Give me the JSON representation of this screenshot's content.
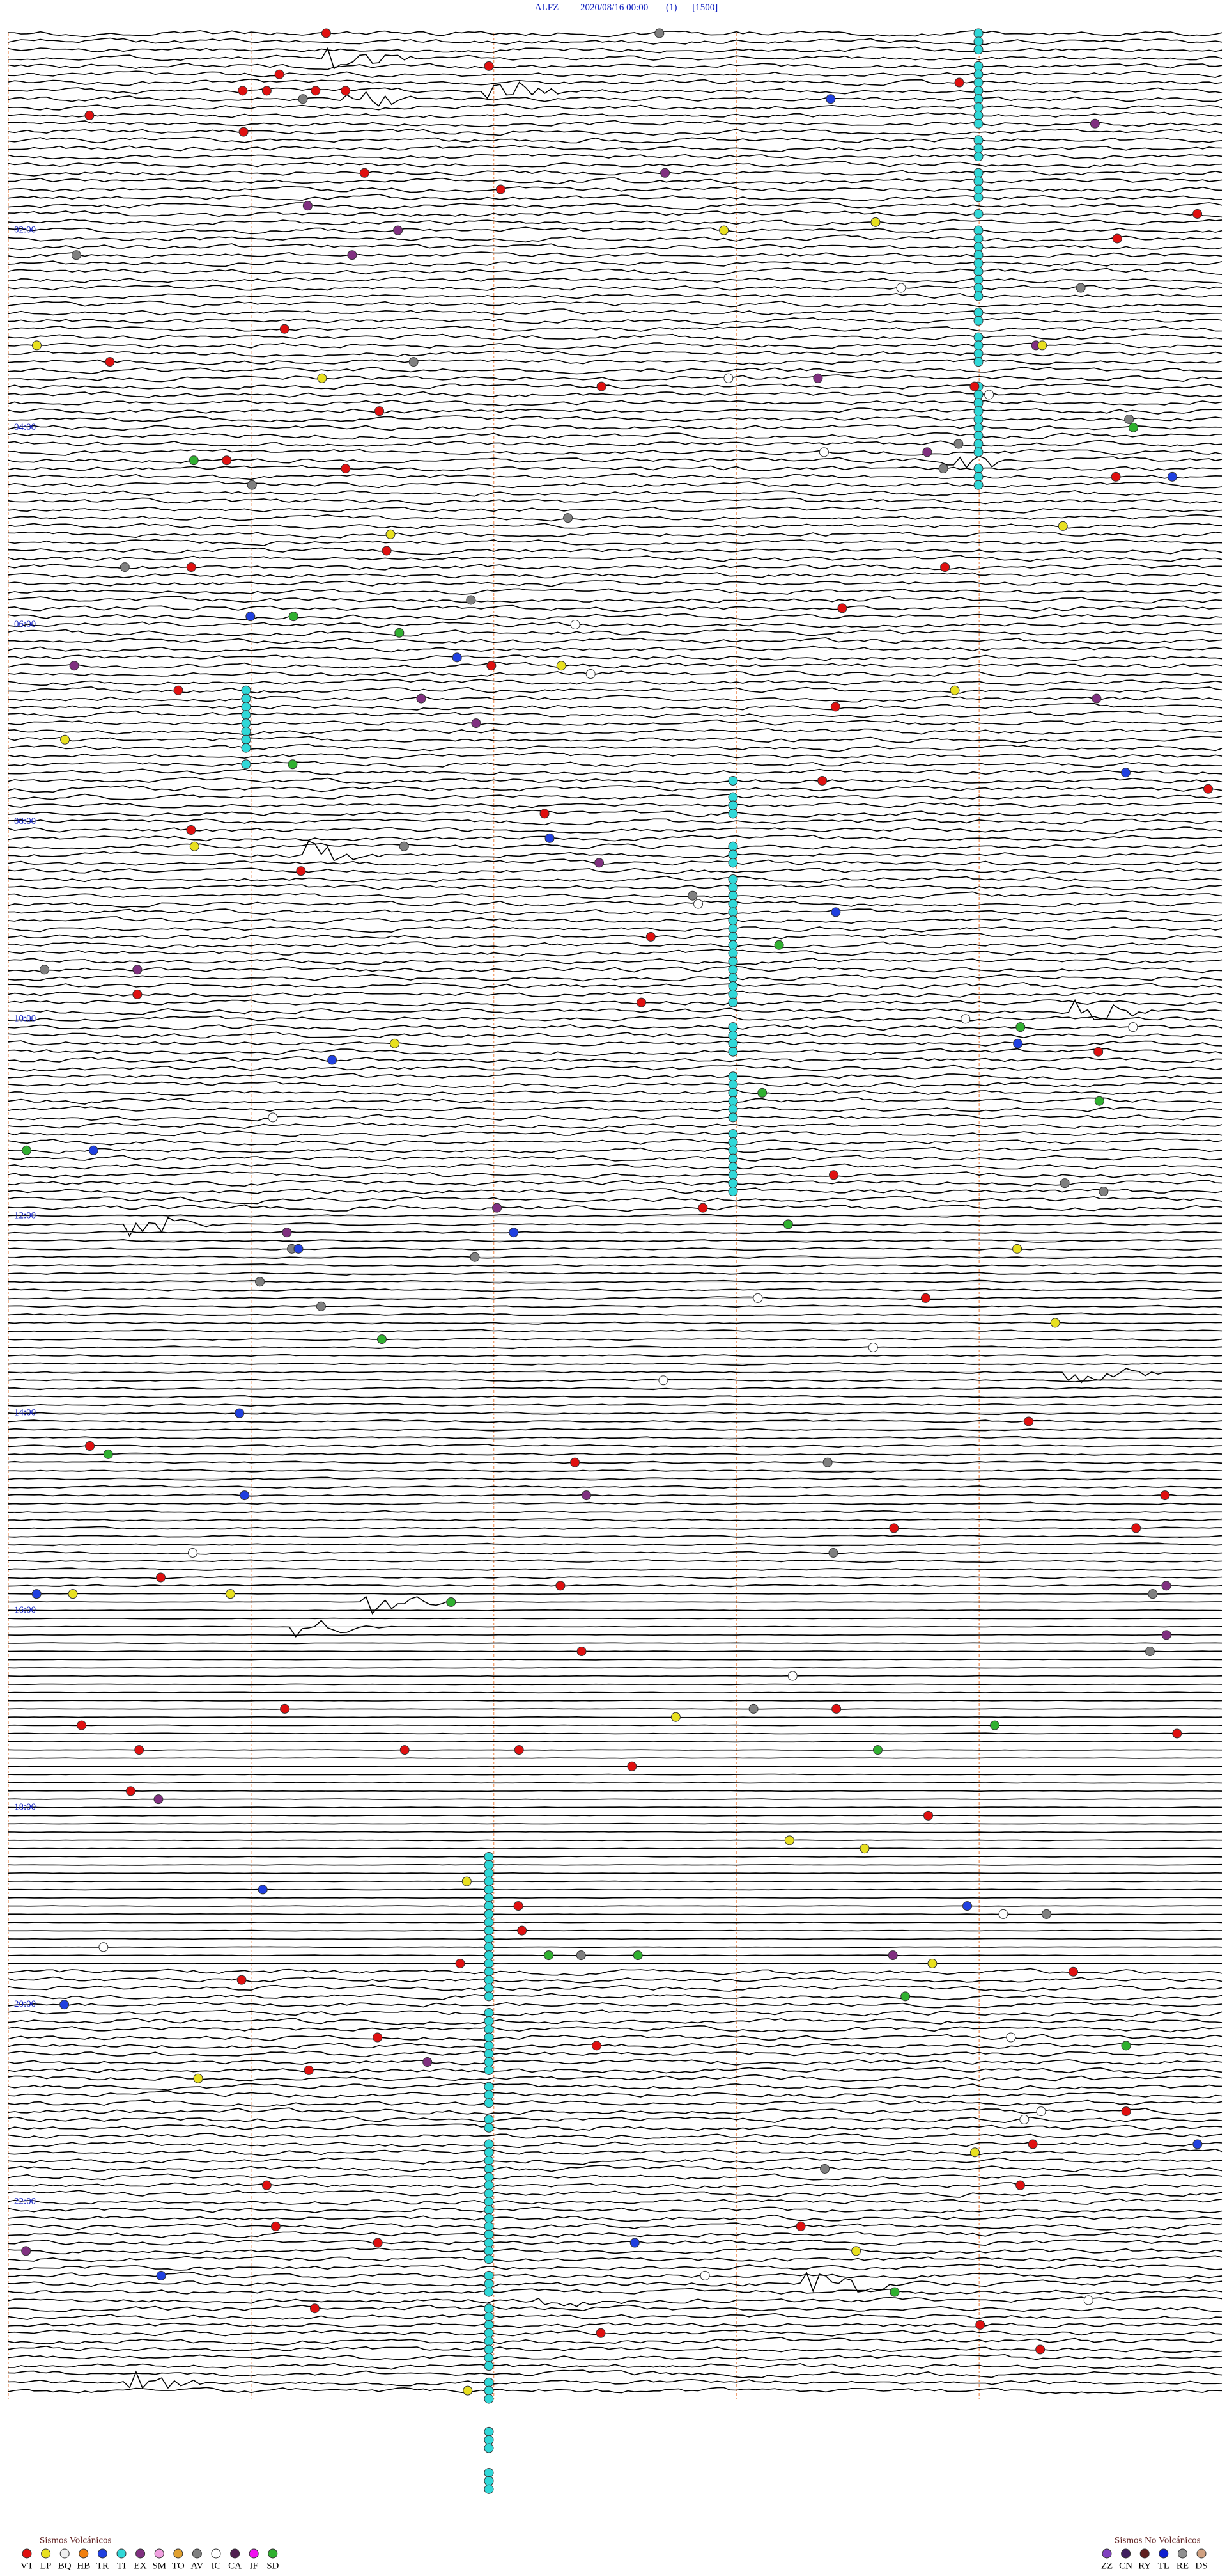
{
  "header": {
    "station": "ALFZ",
    "datetime": "2020/08/16 00:00",
    "channel": "(1)",
    "scale": "[1500]"
  },
  "hour_labels": [
    "02:00",
    "04:00",
    "06:00",
    "08:00",
    "10:00",
    "12:00",
    "14:00",
    "16:00",
    "18:00",
    "20:00",
    "22:00"
  ],
  "legend_volcanic": {
    "title": "Sismos Volcánicos",
    "items": [
      {
        "code": "VT",
        "color": "#e01010"
      },
      {
        "code": "LP",
        "color": "#e8e020"
      },
      {
        "code": "BQ",
        "color": "#f0f0f0"
      },
      {
        "code": "HB",
        "color": "#f08010"
      },
      {
        "code": "TR",
        "color": "#2040e0"
      },
      {
        "code": "TI",
        "color": "#30d8d8"
      },
      {
        "code": "EX",
        "color": "#803080"
      },
      {
        "code": "SM",
        "color": "#f0a0e0"
      },
      {
        "code": "TO",
        "color": "#e0a030"
      },
      {
        "code": "AV",
        "color": "#808080"
      },
      {
        "code": "IC",
        "color": "#ffffff"
      },
      {
        "code": "CA",
        "color": "#502050"
      },
      {
        "code": "IF",
        "color": "#f010f0"
      },
      {
        "code": "SD",
        "color": "#30b030"
      }
    ]
  },
  "legend_nonvolcanic": {
    "title": "Sismos No Volcánicos",
    "items": [
      {
        "code": "ZZ",
        "color": "#8040c0"
      },
      {
        "code": "CN",
        "color": "#402060"
      },
      {
        "code": "RY",
        "color": "#602020"
      },
      {
        "code": "TL",
        "color": "#1020d0"
      },
      {
        "code": "RE",
        "color": "#909090"
      },
      {
        "code": "DS",
        "color": "#d0a080"
      }
    ]
  }
}
